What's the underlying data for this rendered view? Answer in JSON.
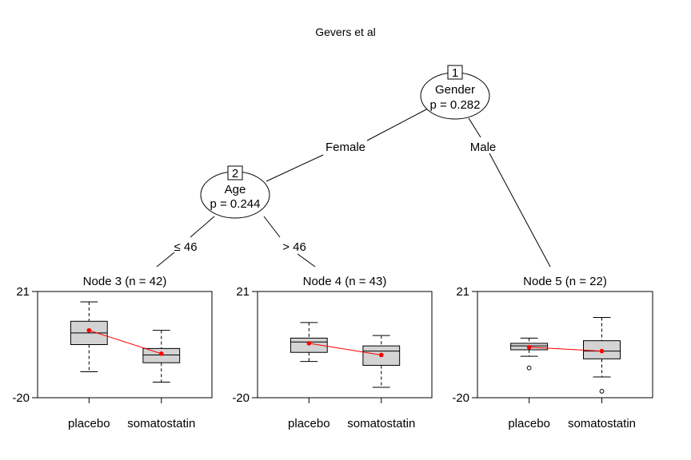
{
  "title": "Gevers et al",
  "root": {
    "id": "1",
    "variable": "Gender",
    "p_text": "p = 0.282"
  },
  "inner": {
    "id": "2",
    "variable": "Age",
    "p_text": "p = 0.244"
  },
  "edges": {
    "female": "Female",
    "male": "Male",
    "le46": "≤ 46",
    "gt46": "> 46"
  },
  "colors": {
    "box_fill": "#d3d3d3",
    "mean_line": "#ff0000"
  },
  "chart_data": [
    {
      "type": "box",
      "title": "Node 3 (n = 42)",
      "categories": [
        "placebo",
        "somatostatin"
      ],
      "ylim": [
        -20,
        21
      ],
      "yticks": [
        "21",
        "-20"
      ],
      "boxes": [
        {
          "category": "placebo",
          "whisker_low": -10,
          "q1": 0.5,
          "median": 5,
          "q3": 9.5,
          "whisker_high": 17,
          "mean": 6,
          "outliers": []
        },
        {
          "category": "somatostatin",
          "whisker_low": -14,
          "q1": -6.5,
          "median": -3.5,
          "q3": -1,
          "whisker_high": 6,
          "mean": -3,
          "outliers": []
        }
      ]
    },
    {
      "type": "box",
      "title": "Node 4 (n = 43)",
      "categories": [
        "placebo",
        "somatostatin"
      ],
      "ylim": [
        -20,
        21
      ],
      "yticks": [
        "21",
        "-20"
      ],
      "boxes": [
        {
          "category": "placebo",
          "whisker_low": -6,
          "q1": -2.5,
          "median": 1.5,
          "q3": 3,
          "whisker_high": 9,
          "mean": 1,
          "outliers": []
        },
        {
          "category": "somatostatin",
          "whisker_low": -16,
          "q1": -7.5,
          "median": -2,
          "q3": 0,
          "whisker_high": 4,
          "mean": -3.5,
          "outliers": []
        }
      ]
    },
    {
      "type": "box",
      "title": "Node 5 (n = 22)",
      "categories": [
        "placebo",
        "somatostatin"
      ],
      "ylim": [
        -20,
        21
      ],
      "yticks": [
        "21",
        "-20"
      ],
      "boxes": [
        {
          "category": "placebo",
          "whisker_low": -4,
          "q1": -1.5,
          "median": 0,
          "q3": 1,
          "whisker_high": 3,
          "mean": -0.5,
          "outliers": [
            -8.5
          ]
        },
        {
          "category": "somatostatin",
          "whisker_low": -12,
          "q1": -5,
          "median": -2,
          "q3": 2,
          "whisker_high": 11,
          "mean": -2,
          "outliers": [
            -17.5
          ]
        }
      ]
    }
  ]
}
